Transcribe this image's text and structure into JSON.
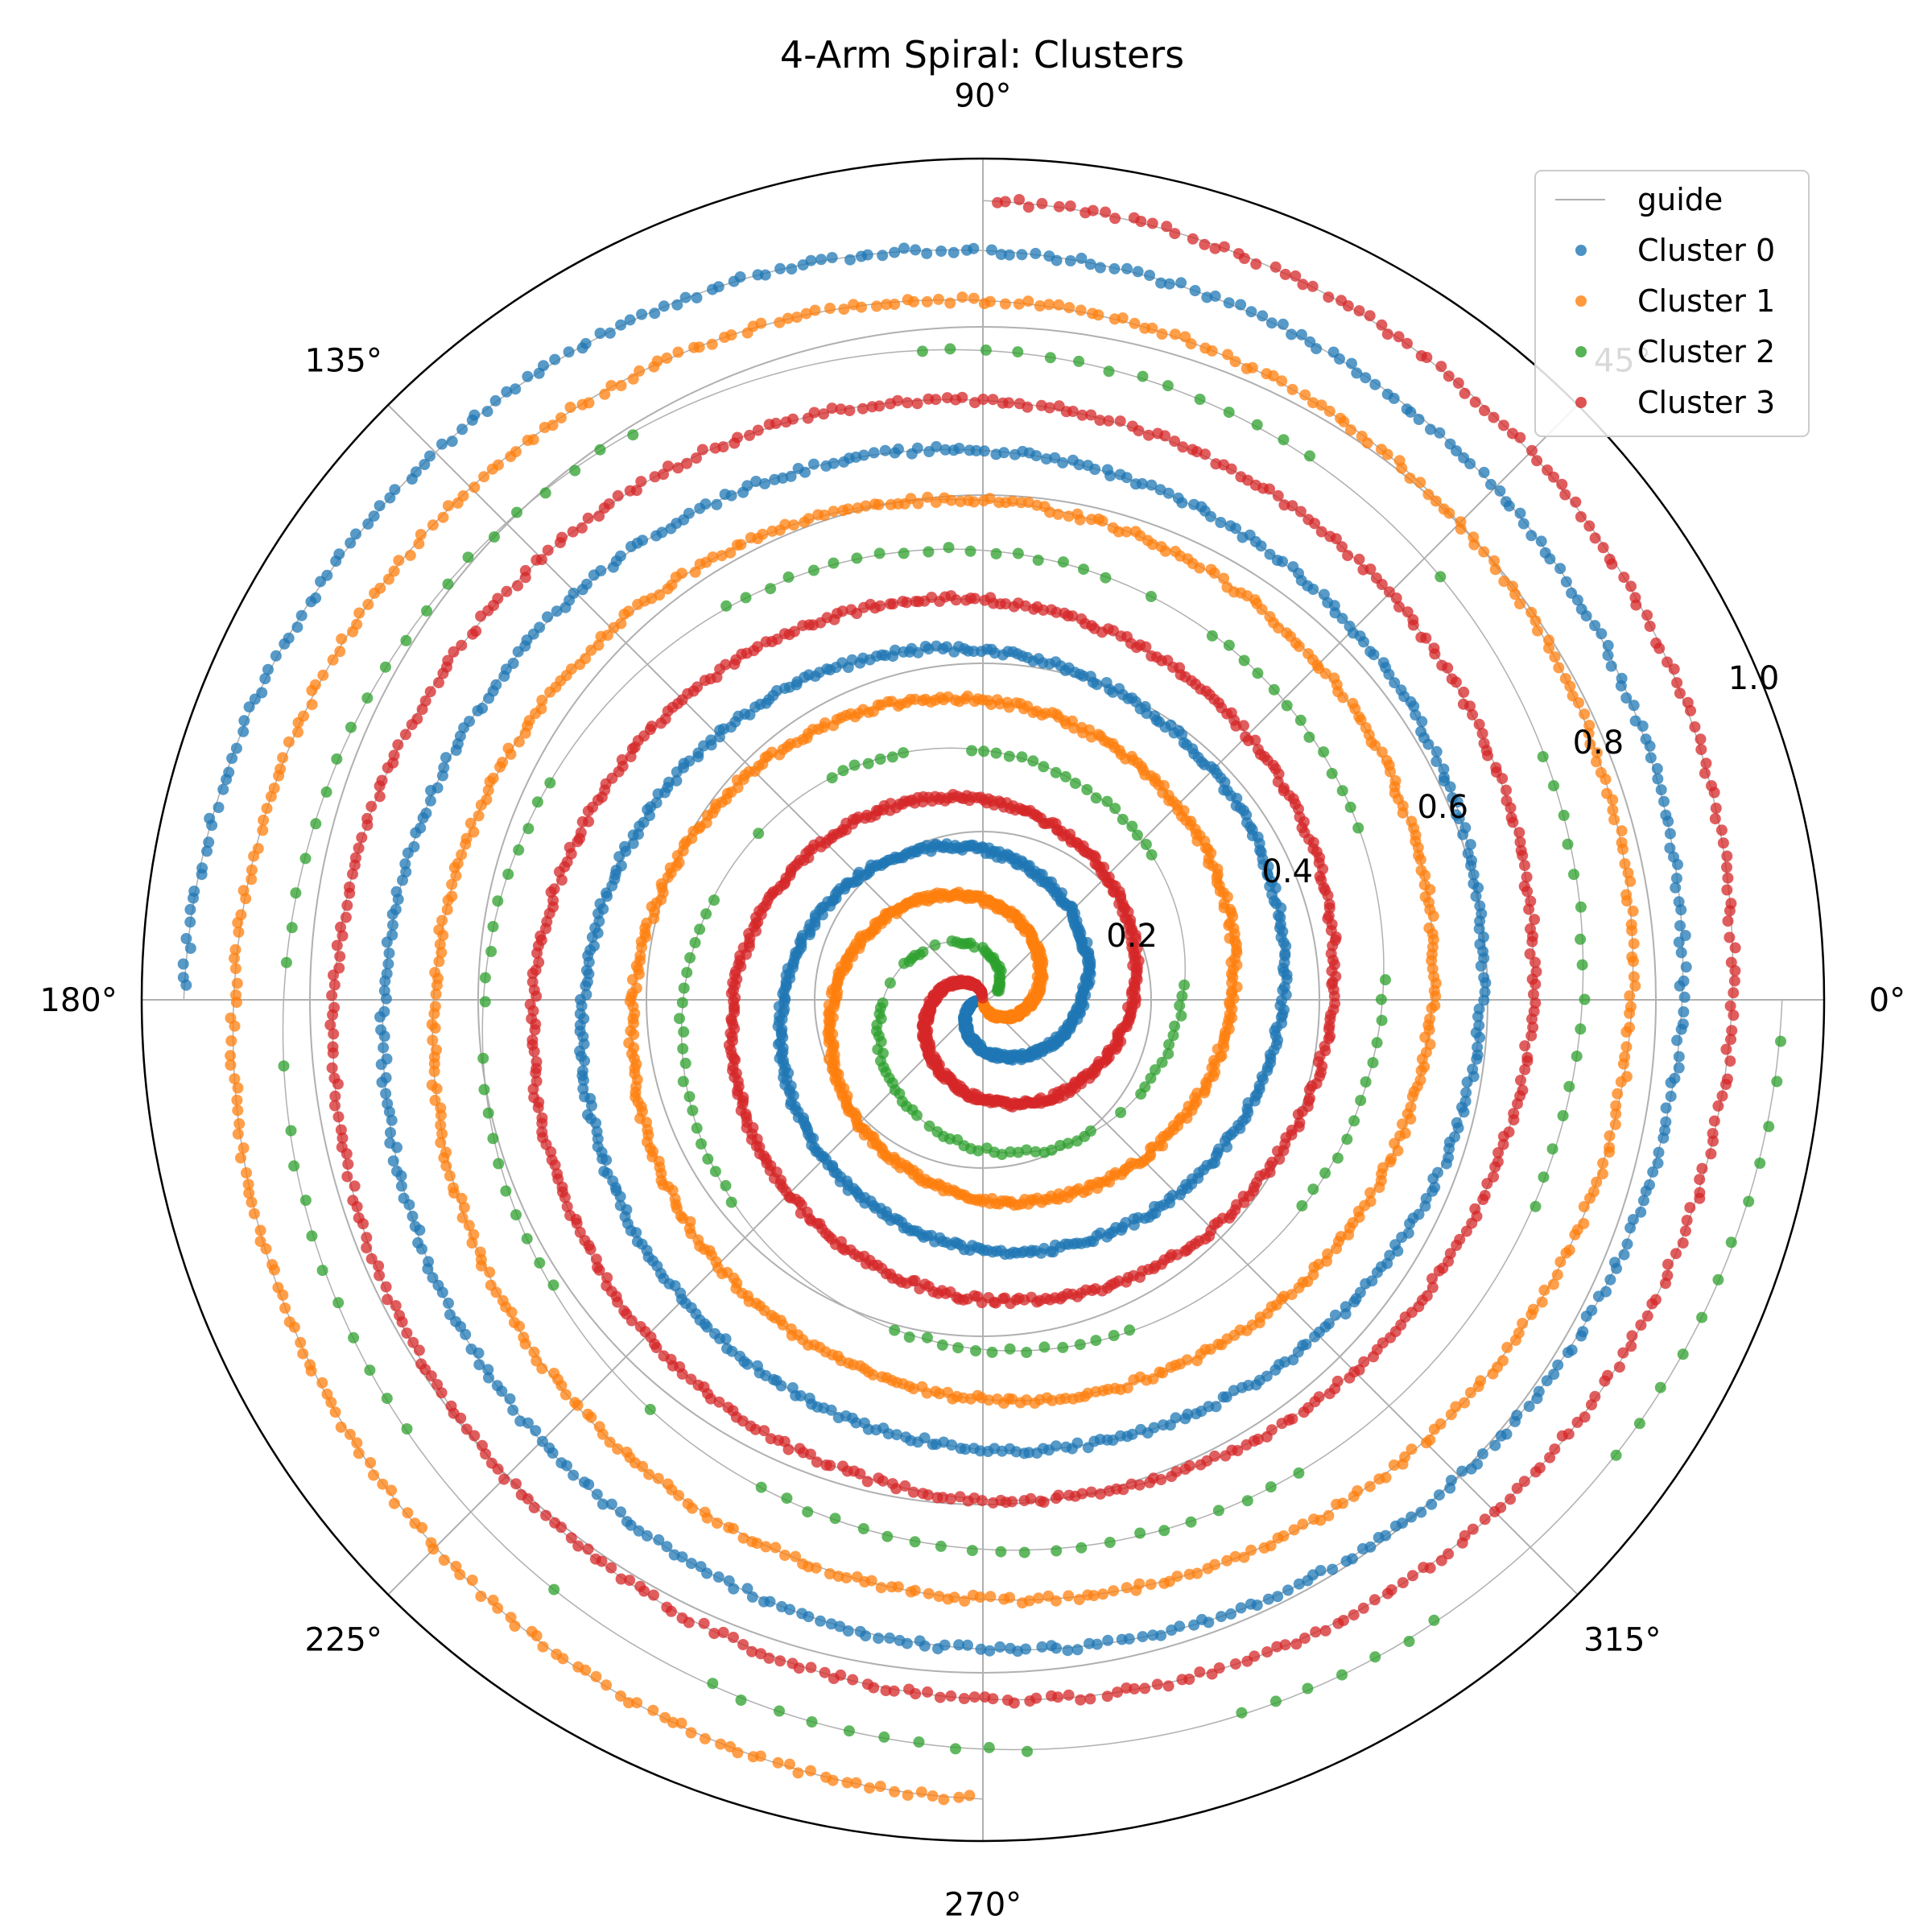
{
  "chart_data": {
    "type": "scatter",
    "projection": "polar",
    "title": "4-Arm Spiral: Clusters",
    "theta_ticks": [
      "0°",
      "45°",
      "90°",
      "135°",
      "180°",
      "225°",
      "270°",
      "315°"
    ],
    "r_ticks": [
      "0.2",
      "0.4",
      "0.6",
      "0.8",
      "1.0"
    ],
    "r_tick_values": [
      0.2,
      0.4,
      0.6,
      0.8,
      1.0
    ],
    "rlim": [
      0,
      1.0
    ],
    "grid": true,
    "legend_position": "top-right",
    "guide": {
      "name": "guide",
      "color": "#b0b0b0"
    },
    "spiral": {
      "r_max": 0.95,
      "turns": 4,
      "note": "r grows linearly with angle, r = 0.95 * t, angle = 8*pi*t + arm offset"
    },
    "series": [
      {
        "name": "Cluster 0",
        "color": "#1f77b4",
        "arm_offset_deg": 180,
        "style": "dense"
      },
      {
        "name": "Cluster 1",
        "color": "#ff7f0e",
        "arm_offset_deg": 270,
        "style": "dense"
      },
      {
        "name": "Cluster 2",
        "color": "#2ca02c",
        "arm_offset_deg": 0,
        "style": "sparse"
      },
      {
        "name": "Cluster 3",
        "color": "#d62728",
        "arm_offset_deg": 90,
        "style": "dense"
      }
    ]
  }
}
